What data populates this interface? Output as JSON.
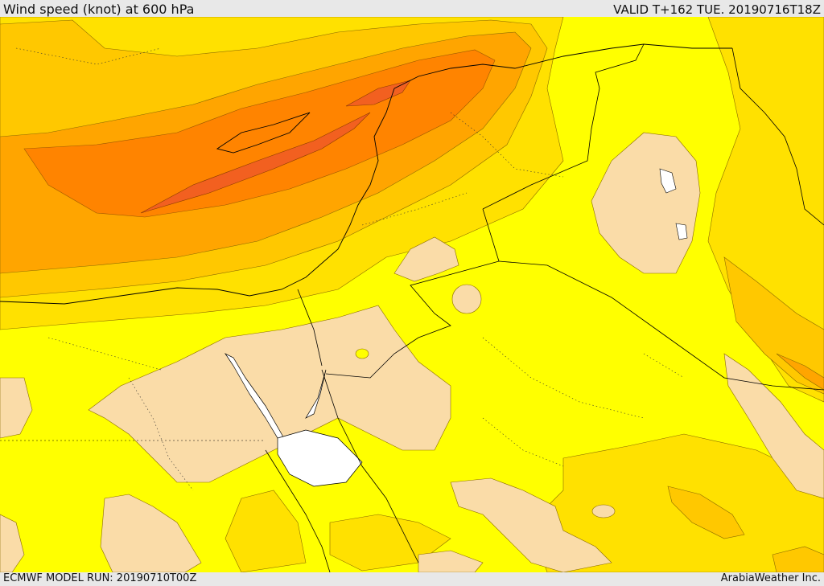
{
  "header": {
    "title": "Wind speed (knot) at 600 hPa",
    "valid_time": "VALID T+162 TUE. 20190716T18Z"
  },
  "footer": {
    "model_run": "ECMWF MODEL RUN: 20190710T00Z",
    "credit": "ArabiaWeather Inc."
  },
  "map": {
    "variable": "wind speed",
    "level": "600 hPa",
    "units": "knot",
    "palette": {
      "calm": "#fadca8",
      "band_1": "#ffff00",
      "band_2": "#ffe100",
      "band_3": "#ffc800",
      "band_4": "#ffa500",
      "band_5": "#ff7f00",
      "band_6": "#f26020",
      "sea": "#ffffff",
      "boundary": "#000000"
    }
  }
}
